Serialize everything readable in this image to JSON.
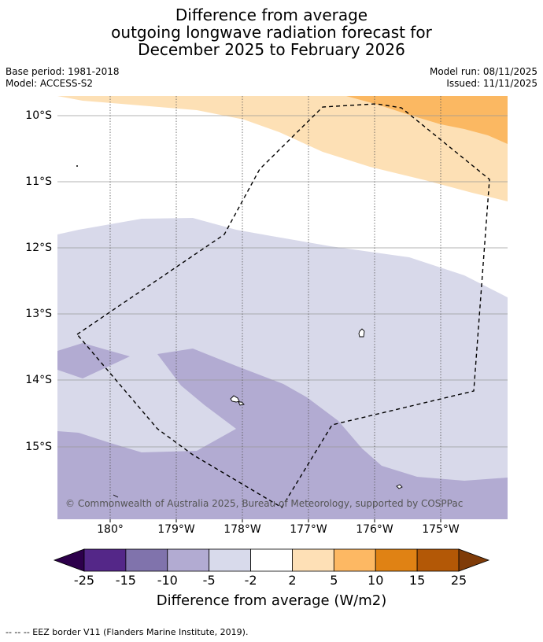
{
  "title": {
    "line1": "Difference from average",
    "line2": "outgoing longwave radiation forecast for",
    "line3": "December 2025 to February 2026"
  },
  "meta": {
    "base_period": "Base period: 1981-2018",
    "model": "Model: ACCESS-S2",
    "model_run": "Model run: 08/11/2025",
    "issued": "Issued: 11/11/2025"
  },
  "map": {
    "lat_labels": [
      "10°S",
      "11°S",
      "12°S",
      "13°S",
      "14°S",
      "15°S"
    ],
    "lon_labels": [
      "180°",
      "179°W",
      "178°W",
      "177°W",
      "176°W",
      "175°W"
    ],
    "copyright": "© Commonwealth of Australia 2025, Bureau of Meteorology, supported by COSPPac",
    "colors": {
      "band_2_5": "#fde0b5",
      "band_5_10": "#fbb862",
      "band_m2_m5": "#d8d9ea",
      "band_m5_m10": "#b2abd2",
      "land": "#ffffff",
      "eez": "#000000"
    }
  },
  "colorbar": {
    "ticks": [
      "-25",
      "-15",
      "-10",
      "-5",
      "-2",
      "2",
      "5",
      "10",
      "15",
      "25"
    ],
    "colors": [
      "#2d004b",
      "#542788",
      "#8073ac",
      "#b2abd2",
      "#d8daeb",
      "#ffffff",
      "#fee0b6",
      "#fdb863",
      "#e08214",
      "#b35806",
      "#7f3b08"
    ],
    "title": "Difference from average (W/m2)"
  },
  "footer": {
    "legend_text": "--  --  -- EEZ border V11 (Flanders Marine Institute, 2019)."
  }
}
